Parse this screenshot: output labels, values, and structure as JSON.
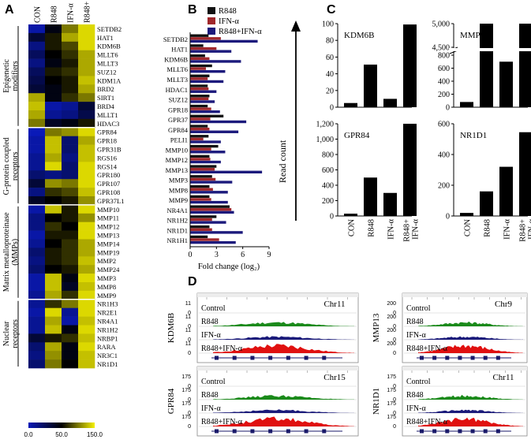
{
  "panel_letters": [
    "A",
    "B",
    "C",
    "D"
  ],
  "chart_data": [
    {
      "type": "heatmap",
      "panel": "A",
      "columns": [
        "CON",
        "R848",
        "IFN-α",
        "R848+ IFN-α"
      ],
      "groups": [
        {
          "label": "Epigenetic modifiers",
          "rows": [
            "SETDB2",
            "HAT1",
            "KDM6B",
            "MLLT6",
            "MLLT3",
            "SUZ12",
            "KDM1A",
            "BRD2",
            "SIRT1",
            "BRD4",
            "MLLT1",
            "HDAC3"
          ]
        },
        {
          "label": "G-protein coupled receptors",
          "rows": [
            "GPR84",
            "GPR18",
            "GPR31B",
            "RGS16",
            "RGS14",
            "GPR180",
            "GPR107",
            "GPR108",
            "GPR37L1"
          ]
        },
        {
          "label": "Matrix metalloproteinase (MMPs)",
          "rows": [
            "MMP10",
            "MMP11",
            "MMP12",
            "MMP13",
            "MMP14",
            "MMP19",
            "MMP2",
            "MMP24",
            "MMP3",
            "MMP8",
            "MMP9"
          ]
        },
        {
          "label": "Nuclear receptors",
          "rows": [
            "NR1H3",
            "NR2E1",
            "NR4A1",
            "NR1H2",
            "NRBP1",
            "RARA",
            "NR3C1",
            "NR1D1"
          ]
        }
      ],
      "values": [
        [
          0.05,
          0.45,
          0.75,
          0.95
        ],
        [
          0.35,
          0.55,
          0.85,
          0.95
        ],
        [
          0.15,
          0.55,
          0.65,
          0.95
        ],
        [
          0.25,
          0.5,
          0.6,
          0.85
        ],
        [
          0.15,
          0.45,
          0.55,
          0.85
        ],
        [
          0.25,
          0.55,
          0.6,
          0.85
        ],
        [
          0.3,
          0.5,
          0.55,
          0.9
        ],
        [
          0.35,
          0.45,
          0.55,
          0.85
        ],
        [
          0.85,
          0.45,
          0.6,
          0.75
        ],
        [
          0.9,
          0.05,
          0.1,
          0.35
        ],
        [
          0.85,
          0.1,
          0.15,
          0.3
        ],
        [
          0.75,
          0.4,
          0.45,
          0.55
        ],
        [
          0.0,
          0.75,
          0.8,
          0.95
        ],
        [
          0.05,
          0.9,
          0.2,
          0.85
        ],
        [
          0.05,
          0.9,
          0.2,
          0.9
        ],
        [
          0.1,
          0.85,
          0.15,
          0.9
        ],
        [
          0.1,
          0.95,
          0.2,
          0.95
        ],
        [
          0.2,
          0.15,
          0.2,
          0.95
        ],
        [
          0.35,
          0.8,
          0.75,
          0.95
        ],
        [
          0.15,
          0.6,
          0.65,
          0.9
        ],
        [
          0.4,
          0.5,
          0.55,
          0.8
        ],
        [
          0.05,
          0.9,
          0.55,
          0.95
        ],
        [
          0.15,
          0.5,
          0.55,
          0.8
        ],
        [
          0.15,
          0.6,
          0.5,
          0.95
        ],
        [
          0.05,
          0.55,
          0.55,
          0.95
        ],
        [
          0.1,
          0.5,
          0.6,
          0.85
        ],
        [
          0.2,
          0.55,
          0.6,
          0.85
        ],
        [
          0.15,
          0.55,
          0.6,
          0.9
        ],
        [
          0.2,
          0.5,
          0.55,
          0.85
        ],
        [
          0.05,
          0.9,
          0.45,
          0.95
        ],
        [
          0.05,
          0.9,
          0.4,
          0.9
        ],
        [
          0.1,
          0.85,
          0.6,
          0.95
        ],
        [
          0.1,
          0.6,
          0.75,
          0.95
        ],
        [
          0.05,
          0.95,
          0.1,
          0.95
        ],
        [
          0.1,
          0.85,
          0.05,
          0.9
        ],
        [
          0.1,
          0.9,
          0.45,
          0.95
        ],
        [
          0.35,
          0.55,
          0.6,
          0.9
        ],
        [
          0.2,
          0.85,
          0.45,
          0.95
        ],
        [
          0.15,
          0.8,
          0.45,
          0.9
        ],
        [
          0.2,
          0.75,
          0.5,
          0.9
        ]
      ],
      "colorbar": {
        "ticks": [
          "0.0",
          "50.0",
          "150.0"
        ],
        "low_color": "#0a1ab8",
        "mid_color": "#000000",
        "high_color": "#f5f000"
      }
    },
    {
      "type": "bar",
      "panel": "B",
      "orientation": "horizontal",
      "categories": [
        "SETDB2",
        "HAT1",
        "KDM6B",
        "MLLT6",
        "MLLT3",
        "HDAC1",
        "SUZ12",
        "GPR18",
        "GPR37",
        "GPR84",
        "PELI1",
        "MMP10",
        "MMP12",
        "MMP13",
        "MMP3",
        "MMP8",
        "MMP9",
        "NR4A1",
        "NR1H2",
        "NR1D1",
        "NR1H1"
      ],
      "series": [
        {
          "name": "R848",
          "color": "#111111",
          "values": [
            2.1,
            1.5,
            1.7,
            2.5,
            2.2,
            2.0,
            2.2,
            2.0,
            3.8,
            2.0,
            2.1,
            3.2,
            2.2,
            3.0,
            2.5,
            2.2,
            2.2,
            4.5,
            3.0,
            2.2,
            2.0
          ]
        },
        {
          "name": "IFN-α",
          "color": "#a0282c",
          "values": [
            3.5,
            3.0,
            2.2,
            1.8,
            2.0,
            2.1,
            2.1,
            2.4,
            2.3,
            2.2,
            1.5,
            2.4,
            2.3,
            2.8,
            2.9,
            2.6,
            2.4,
            4.7,
            2.5,
            2.5,
            3.3
          ]
        },
        {
          "name": "R848+IFN-α",
          "color": "#1c1a7c",
          "values": [
            7.7,
            4.7,
            5.8,
            4.0,
            3.8,
            3.0,
            2.8,
            3.4,
            6.4,
            5.5,
            3.5,
            4.0,
            3.5,
            8.2,
            4.8,
            4.3,
            4.3,
            5.0,
            4.1,
            6.0,
            5.2
          ]
        }
      ],
      "xlabel": "Fold change (log₂)",
      "xticks": [
        "0",
        "3",
        "6",
        "9"
      ],
      "xlim": [
        0,
        9
      ]
    },
    {
      "type": "bar",
      "panel": "C",
      "ylabel": "Read count",
      "categories": [
        "CON",
        "R848",
        "IFN-α",
        "R848+ IFN-α"
      ],
      "charts": [
        {
          "title": "KDM6B",
          "values": [
            5,
            51,
            10,
            99
          ],
          "ylim": [
            0,
            100
          ],
          "yticks": [
            "0",
            "20",
            "40",
            "60",
            "80",
            "100"
          ]
        },
        {
          "title": "MMP13",
          "values": [
            80,
            4600,
            700,
            5000
          ],
          "axis_break": true,
          "yticks": [
            "0",
            "200",
            "400",
            "600",
            "800",
            "4,500",
            "5,000"
          ]
        },
        {
          "title": "GPR84",
          "values": [
            30,
            500,
            300,
            1200
          ],
          "ylim": [
            0,
            1200
          ],
          "yticks": [
            "0",
            "200",
            "400",
            "600",
            "800",
            "1,000",
            "1,200"
          ]
        },
        {
          "title": "NR1D1",
          "values": [
            20,
            160,
            320,
            545
          ],
          "ylim": [
            0,
            600
          ],
          "yticks": [
            "0",
            "200",
            "400",
            "600"
          ]
        }
      ]
    }
  ],
  "panel_d": {
    "ylabel_ticks": [
      "11",
      "0"
    ],
    "tracks": [
      {
        "gene": "KDM6B",
        "chrom": "Chr11",
        "axis_max": "11",
        "axis_min": "0",
        "rows": [
          "Control",
          "R848",
          "IFN-α",
          "R848+IFN-α"
        ]
      },
      {
        "gene": "MMP13",
        "chrom": "Chr9",
        "axis_max": "200",
        "axis_min": "0",
        "rows": [
          "Control",
          "R848",
          "IFN-α",
          "R848+IFN-α"
        ]
      },
      {
        "gene": "GPR84",
        "chrom": "Chr15",
        "axis_max": "175",
        "axis_min": "0",
        "rows": [
          "Control",
          "R848",
          "IFN-α",
          "R848+IFN-α"
        ]
      },
      {
        "gene": "NR1D1",
        "chrom": "Chr11",
        "axis_max": "175",
        "axis_min": "0",
        "rows": [
          "Control",
          "R848",
          "IFN-α",
          "R848+IFN-α"
        ]
      }
    ]
  }
}
